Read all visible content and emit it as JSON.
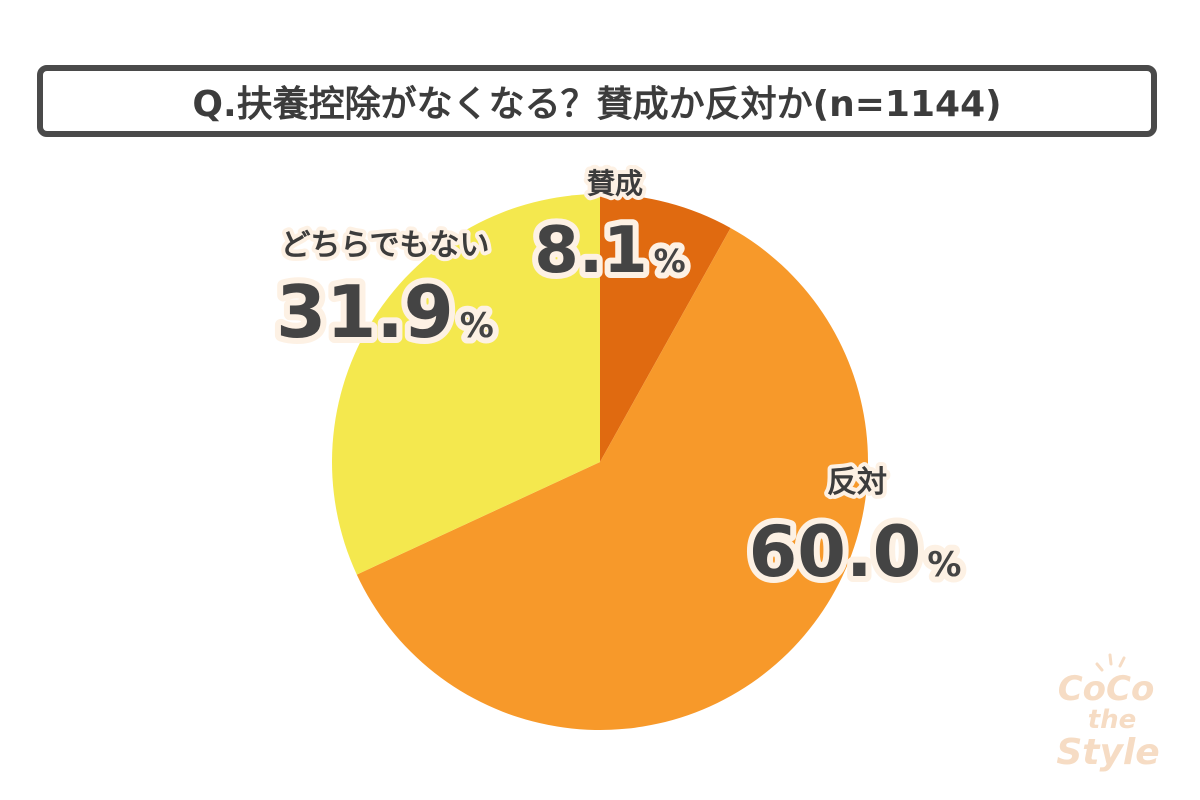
{
  "title": "Q.扶養控除がなくなる？賛成か反対か(n=1144)",
  "chart_data": {
    "type": "pie",
    "categories": [
      "賛成",
      "反対",
      "どちらでもない"
    ],
    "values": [
      8.1,
      60.0,
      31.9
    ],
    "value_labels": [
      "8.1",
      "60.0",
      "31.9"
    ],
    "unit": "%",
    "colors": [
      "#e06a10",
      "#f7992a",
      "#f4e84e"
    ]
  },
  "watermark": {
    "line1": "CoCo",
    "line2": "the",
    "line3": "Style"
  }
}
